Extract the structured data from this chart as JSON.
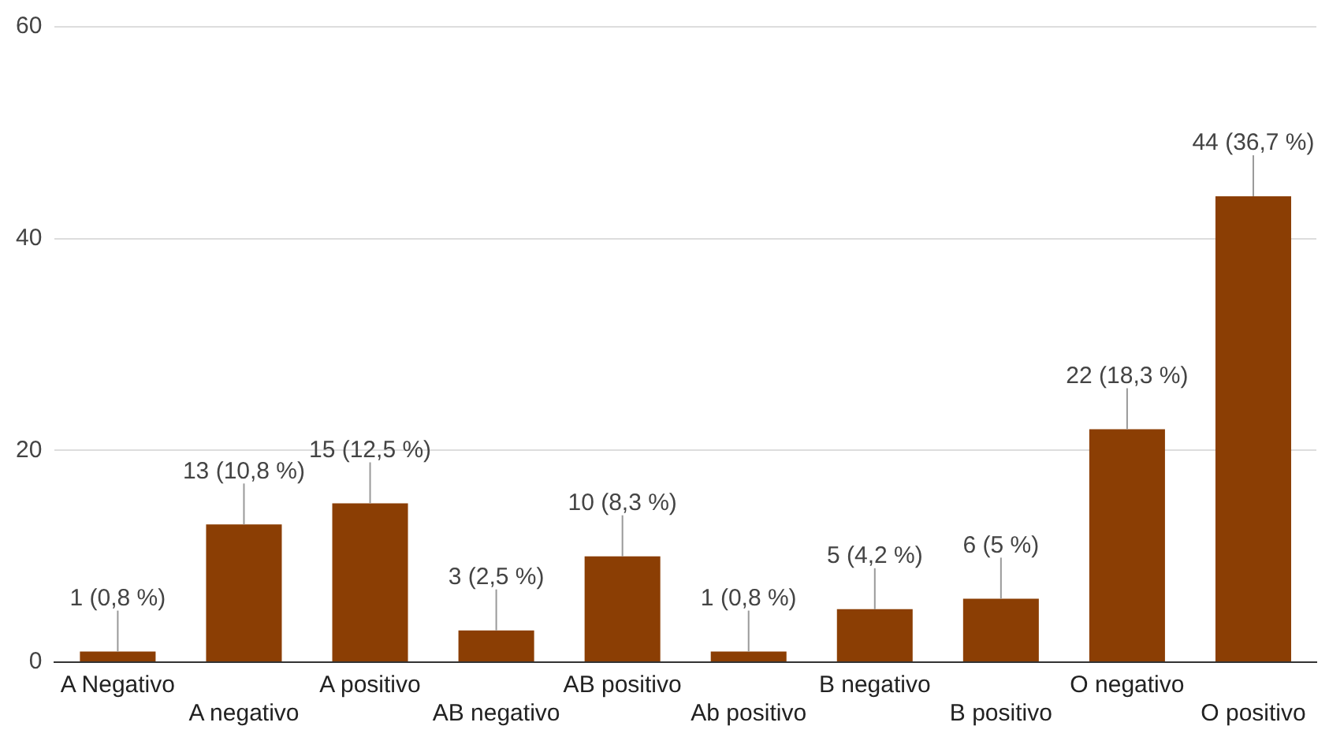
{
  "chart_data": {
    "type": "bar",
    "categories": [
      "A Negativo",
      "A negativo",
      "A positivo",
      "AB negativo",
      "AB positivo",
      "Ab positivo",
      "B negativo",
      "B positivo",
      "O negativo",
      "O positivo"
    ],
    "values": [
      1,
      13,
      15,
      3,
      10,
      1,
      5,
      6,
      22,
      44
    ],
    "value_labels": [
      "1 (0,8 %)",
      "13 (10,8 %)",
      "15 (12,5 %)",
      "3 (2,5 %)",
      "10 (8,3 %)",
      "1 (0,8 %)",
      "5 (4,2 %)",
      "6 (5 %)",
      "22 (18,3 %)",
      "44 (36,7 %)"
    ],
    "color": "#8b3e04",
    "ylim": [
      0,
      60
    ],
    "yticks": [
      0,
      20,
      40,
      60
    ],
    "grid": "y"
  }
}
